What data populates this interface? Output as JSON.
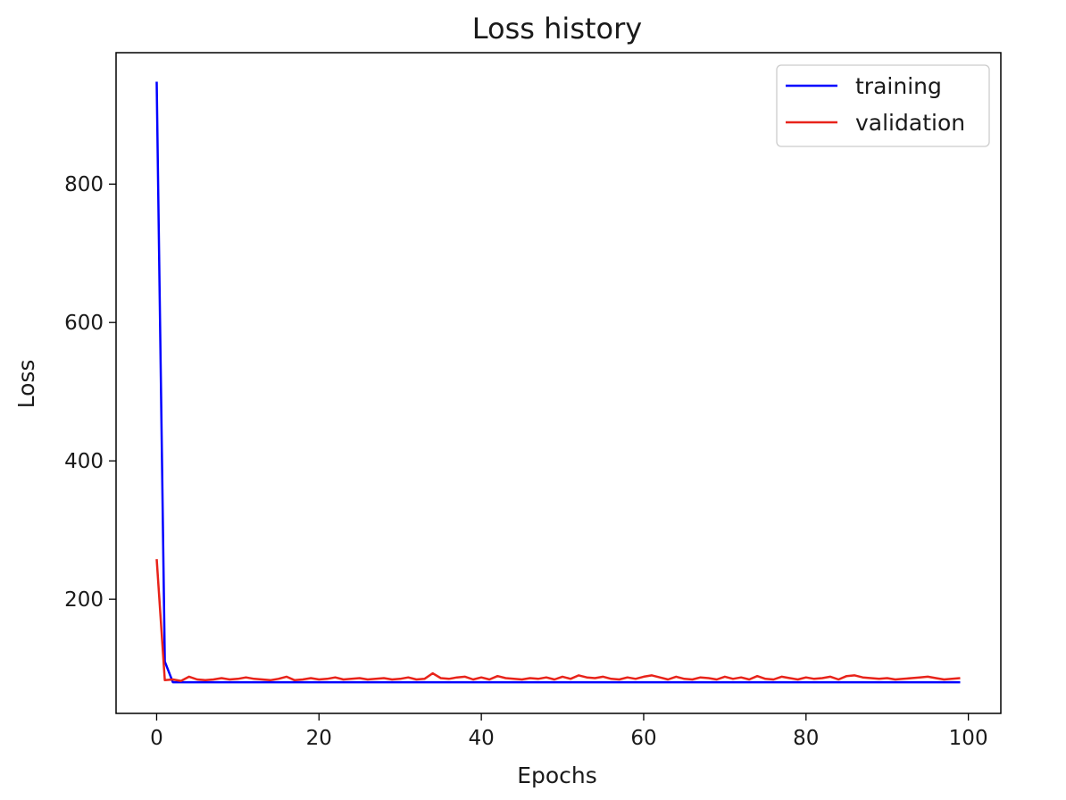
{
  "chart_data": {
    "type": "line",
    "title": "Loss history",
    "xlabel": "Epochs",
    "ylabel": "Loss",
    "xlim": [
      -5,
      104
    ],
    "ylim": [
      35,
      990
    ],
    "xticks": [
      0,
      20,
      40,
      60,
      80,
      100
    ],
    "yticks": [
      200,
      400,
      600,
      800
    ],
    "grid": false,
    "legend_position": "top-right",
    "series": [
      {
        "name": "training",
        "color": "#0000ff",
        "x": [
          0,
          1,
          2,
          3,
          4,
          5,
          6,
          7,
          8,
          9,
          10,
          11,
          12,
          13,
          14,
          15,
          16,
          17,
          18,
          19,
          20,
          21,
          22,
          23,
          24,
          25,
          26,
          27,
          28,
          29,
          30,
          31,
          32,
          33,
          34,
          35,
          36,
          37,
          38,
          39,
          40,
          41,
          42,
          43,
          44,
          45,
          46,
          47,
          48,
          49,
          50,
          51,
          52,
          53,
          54,
          55,
          56,
          57,
          58,
          59,
          60,
          61,
          62,
          63,
          64,
          65,
          66,
          67,
          68,
          69,
          70,
          71,
          72,
          73,
          74,
          75,
          76,
          77,
          78,
          79,
          80,
          81,
          82,
          83,
          84,
          85,
          86,
          87,
          88,
          89,
          90,
          91,
          92,
          93,
          94,
          95,
          96,
          97,
          98,
          99
        ],
        "values": [
          948,
          110,
          80,
          80,
          80,
          80,
          80,
          80,
          80,
          80,
          80,
          80,
          80,
          80,
          80,
          80,
          80,
          80,
          80,
          80,
          80,
          80,
          80,
          80,
          80,
          80,
          80,
          80,
          80,
          80,
          80,
          80,
          80,
          80,
          80,
          80,
          80,
          80,
          80,
          80,
          80,
          80,
          80,
          80,
          80,
          80,
          80,
          80,
          80,
          80,
          80,
          80,
          80,
          80,
          80,
          80,
          80,
          80,
          80,
          80,
          80,
          80,
          80,
          80,
          80,
          80,
          80,
          80,
          80,
          80,
          80,
          80,
          80,
          80,
          80,
          80,
          80,
          80,
          80,
          80,
          80,
          80,
          80,
          80,
          80,
          80,
          80,
          80,
          80,
          80,
          80,
          80,
          80,
          80,
          80,
          80,
          80,
          80,
          80,
          80
        ]
      },
      {
        "name": "validation",
        "color": "#e8231a",
        "x": [
          0,
          1,
          2,
          3,
          4,
          5,
          6,
          7,
          8,
          9,
          10,
          11,
          12,
          13,
          14,
          15,
          16,
          17,
          18,
          19,
          20,
          21,
          22,
          23,
          24,
          25,
          26,
          27,
          28,
          29,
          30,
          31,
          32,
          33,
          34,
          35,
          36,
          37,
          38,
          39,
          40,
          41,
          42,
          43,
          44,
          45,
          46,
          47,
          48,
          49,
          50,
          51,
          52,
          53,
          54,
          55,
          56,
          57,
          58,
          59,
          60,
          61,
          62,
          63,
          64,
          65,
          66,
          67,
          68,
          69,
          70,
          71,
          72,
          73,
          74,
          75,
          76,
          77,
          78,
          79,
          80,
          81,
          82,
          83,
          84,
          85,
          86,
          87,
          88,
          89,
          90,
          91,
          92,
          93,
          94,
          95,
          96,
          97,
          98,
          99
        ],
        "values": [
          258,
          83,
          84,
          82,
          88,
          84,
          83,
          84,
          86,
          84,
          85,
          87,
          85,
          84,
          83,
          85,
          88,
          83,
          84,
          86,
          84,
          85,
          87,
          84,
          85,
          86,
          84,
          85,
          86,
          84,
          85,
          87,
          84,
          85,
          93,
          86,
          85,
          87,
          88,
          84,
          87,
          84,
          89,
          86,
          85,
          84,
          86,
          85,
          87,
          84,
          88,
          85,
          90,
          87,
          86,
          88,
          85,
          84,
          87,
          85,
          88,
          90,
          87,
          84,
          88,
          85,
          84,
          87,
          86,
          84,
          88,
          85,
          87,
          84,
          89,
          85,
          84,
          88,
          86,
          84,
          87,
          85,
          86,
          88,
          84,
          89,
          90,
          87,
          86,
          85,
          86,
          84,
          85,
          86,
          87,
          88,
          86,
          84,
          85,
          86
        ]
      }
    ]
  }
}
